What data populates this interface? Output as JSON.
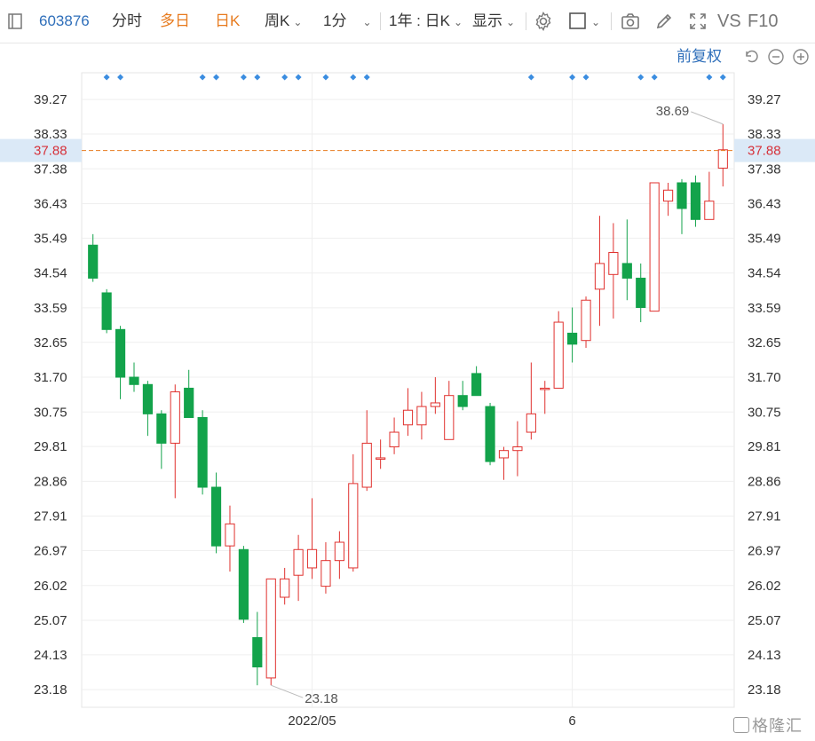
{
  "toolbar": {
    "code": "603876",
    "tabs": [
      "分时",
      "多日",
      "日K"
    ],
    "period": "周K",
    "minute": "1分",
    "range": "1年 : 日K",
    "display": "显示",
    "vs": "VS",
    "f10": "F10"
  },
  "adjust": "前复权",
  "watermark": "格隆汇",
  "colors": {
    "up": "#e0312e",
    "down": "#13a34b",
    "accent": "#e77b1f",
    "link": "#2f6fba",
    "marker": "#3b8de0"
  },
  "chart_data": {
    "type": "candlestick",
    "ylim": [
      22.7,
      40.0
    ],
    "y_ticks": [
      "39.27",
      "38.33",
      "37.38",
      "36.43",
      "35.49",
      "34.54",
      "33.59",
      "32.65",
      "31.70",
      "30.75",
      "29.81",
      "28.86",
      "27.91",
      "26.97",
      "26.02",
      "25.07",
      "24.13",
      "23.18"
    ],
    "x_labels": [
      "2022/05",
      "6"
    ],
    "x_label_index": [
      16,
      35
    ],
    "current_price": "37.88",
    "current_value": 37.88,
    "max_label": "38.69",
    "min_label": "23.18",
    "max_index": 46,
    "min_index": 13,
    "marker_index": [
      1,
      2,
      8,
      9,
      11,
      12,
      14,
      15,
      17,
      19,
      20,
      32,
      35,
      36,
      40,
      41,
      45,
      46
    ],
    "ohlc": [
      [
        35.3,
        35.6,
        34.3,
        34.4
      ],
      [
        34.0,
        34.1,
        32.9,
        33.0
      ],
      [
        33.0,
        33.1,
        31.1,
        31.7
      ],
      [
        31.7,
        32.1,
        31.3,
        31.5
      ],
      [
        31.5,
        31.6,
        30.1,
        30.7
      ],
      [
        30.7,
        30.8,
        29.2,
        29.9
      ],
      [
        29.9,
        31.5,
        28.4,
        31.3
      ],
      [
        31.4,
        31.9,
        30.6,
        30.6
      ],
      [
        30.6,
        30.8,
        28.5,
        28.7
      ],
      [
        28.7,
        29.1,
        26.9,
        27.1
      ],
      [
        27.1,
        28.2,
        26.4,
        27.7
      ],
      [
        27.0,
        27.1,
        25.0,
        25.1
      ],
      [
        24.6,
        25.3,
        23.3,
        23.8
      ],
      [
        23.5,
        26.2,
        23.3,
        26.2
      ],
      [
        25.7,
        26.5,
        25.5,
        26.2
      ],
      [
        26.3,
        27.4,
        25.6,
        27.0
      ],
      [
        26.5,
        28.4,
        26.2,
        27.0
      ],
      [
        26.0,
        27.2,
        25.8,
        26.7
      ],
      [
        26.7,
        27.5,
        26.2,
        27.2
      ],
      [
        26.5,
        29.6,
        26.4,
        28.8
      ],
      [
        28.7,
        30.8,
        28.6,
        29.9
      ],
      [
        29.5,
        30.0,
        29.2,
        29.5
      ],
      [
        29.8,
        30.6,
        29.6,
        30.2
      ],
      [
        30.4,
        31.4,
        30.1,
        30.8
      ],
      [
        30.4,
        31.3,
        30.0,
        30.9
      ],
      [
        30.9,
        31.7,
        30.7,
        31.0
      ],
      [
        30.0,
        31.6,
        30.0,
        31.2
      ],
      [
        31.2,
        31.6,
        30.8,
        30.9
      ],
      [
        31.8,
        32.0,
        31.2,
        31.2
      ],
      [
        30.9,
        31.0,
        29.3,
        29.4
      ],
      [
        29.5,
        29.8,
        28.9,
        29.7
      ],
      [
        29.7,
        30.5,
        29.0,
        29.8
      ],
      [
        30.2,
        32.1,
        30.0,
        30.7
      ],
      [
        31.4,
        31.6,
        30.7,
        31.4
      ],
      [
        31.4,
        33.5,
        31.4,
        33.2
      ],
      [
        32.9,
        33.6,
        32.1,
        32.6
      ],
      [
        32.7,
        33.9,
        32.5,
        33.8
      ],
      [
        34.1,
        36.1,
        33.1,
        34.8
      ],
      [
        34.5,
        35.9,
        33.3,
        35.1
      ],
      [
        34.8,
        36.0,
        33.8,
        34.4
      ],
      [
        34.4,
        34.8,
        33.2,
        33.6
      ],
      [
        33.5,
        37.0,
        33.5,
        37.0
      ],
      [
        36.5,
        37.0,
        36.1,
        36.8
      ],
      [
        37.0,
        37.1,
        35.6,
        36.3
      ],
      [
        37.0,
        37.2,
        35.8,
        36.0
      ],
      [
        36.0,
        37.3,
        36.0,
        36.5
      ],
      [
        37.4,
        38.6,
        36.9,
        37.9
      ]
    ]
  }
}
